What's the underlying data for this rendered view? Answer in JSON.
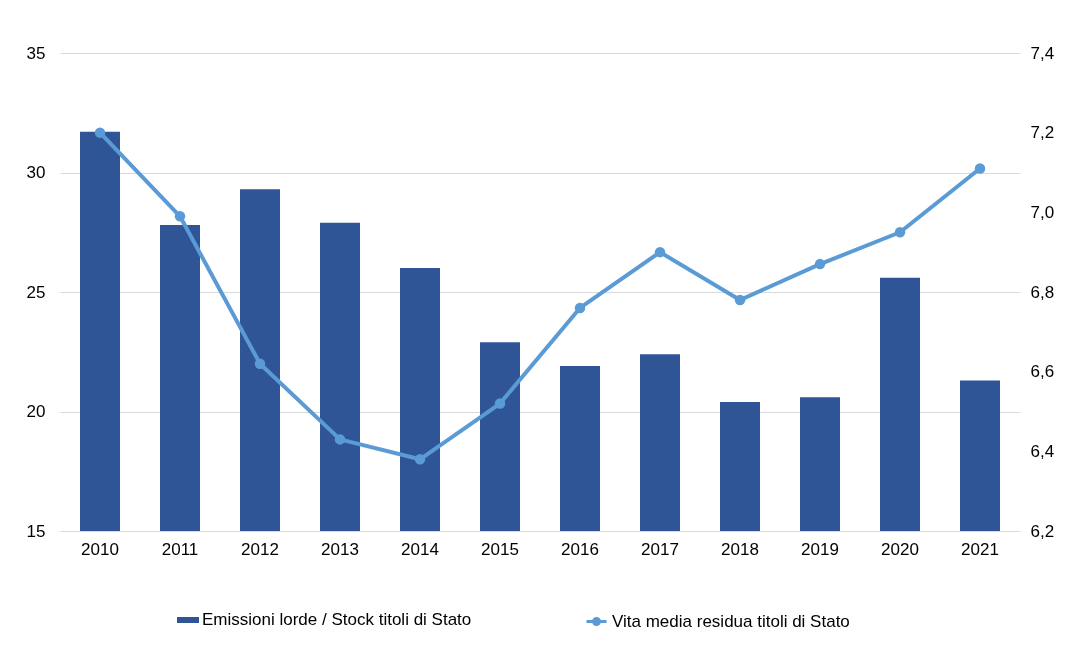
{
  "chart_data": {
    "type": "bar",
    "categories": [
      "2010",
      "2011",
      "2012",
      "2013",
      "2014",
      "2015",
      "2016",
      "2017",
      "2018",
      "2019",
      "2020",
      "2021"
    ],
    "series": [
      {
        "name": "Emissioni lorde / Stock titoli di Stato",
        "color": "#2f5597",
        "values": [
          31.7,
          27.8,
          29.3,
          27.9,
          26.0,
          22.9,
          21.9,
          22.4,
          20.4,
          20.6,
          25.6,
          21.3
        ]
      },
      {
        "name": "Vita media residua titoli di Stato",
        "type": "line",
        "axis": "y2",
        "color": "#5b9bd5",
        "values": [
          7.2,
          6.99,
          6.62,
          6.43,
          6.38,
          6.52,
          6.76,
          6.9,
          6.78,
          6.87,
          6.95,
          7.11
        ]
      }
    ],
    "ylim": [
      15,
      35
    ],
    "yticks": [
      15,
      20,
      25,
      30,
      35
    ],
    "y2lim": [
      6.2,
      7.4
    ],
    "y2ticks": [
      {
        "value": 6.2,
        "label": "6,2"
      },
      {
        "value": 6.4,
        "label": "6,4"
      },
      {
        "value": 6.6,
        "label": "6,6"
      },
      {
        "value": 6.8,
        "label": "6,8"
      },
      {
        "value": 7.0,
        "label": "7,0"
      },
      {
        "value": 7.2,
        "label": "7,2"
      },
      {
        "value": 7.4,
        "label": "7,4"
      }
    ],
    "grid": "y",
    "legend": "bottom",
    "marker": "circle",
    "line_style": "solid"
  }
}
